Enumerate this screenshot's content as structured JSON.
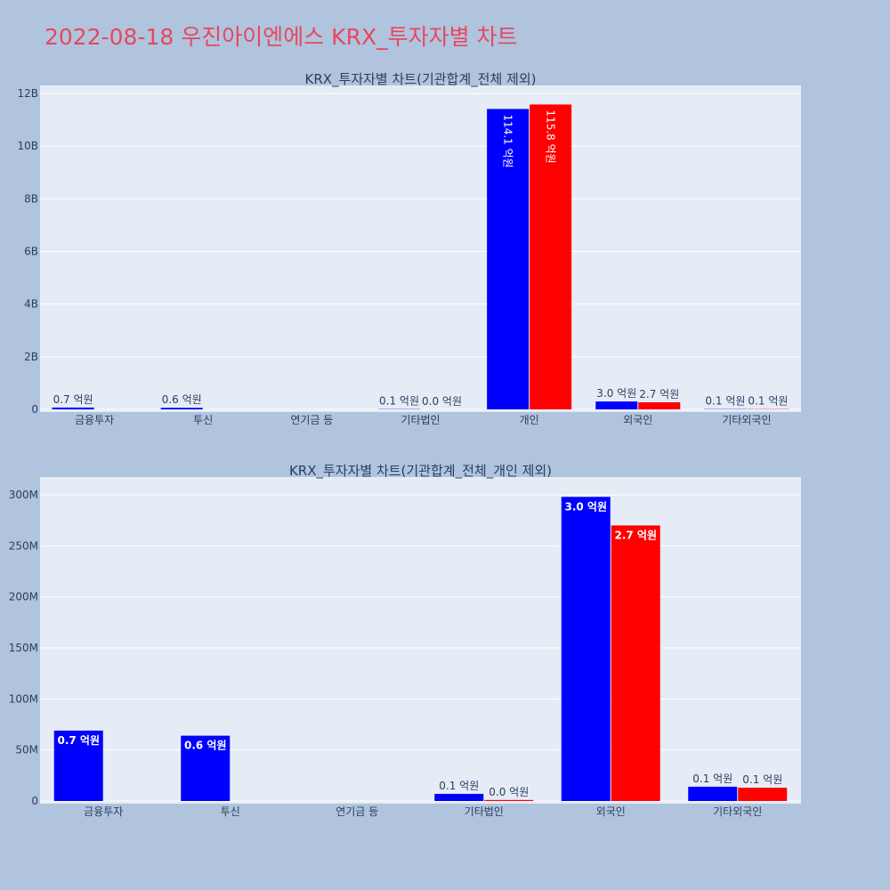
{
  "title": "2022-08-18 우진아이엔에스 KRX_투자자별 차트",
  "colors": {
    "background": "#b0c4de",
    "plot_bg": "#e5ecf6",
    "title": "#e8475f",
    "series_a": "#0000ff",
    "series_b": "#ff0000"
  },
  "chart_data": [
    {
      "type": "bar",
      "title": "KRX_투자자별 차트(기관합계_전체 제외)",
      "categories": [
        "금융투자",
        "투신",
        "연기금 등",
        "기타법인",
        "개인",
        "외국인",
        "기타외국인"
      ],
      "yticks": [
        "0",
        "2B",
        "4B",
        "6B",
        "8B",
        "10B",
        "12B"
      ],
      "ylim": [
        0,
        12000000000
      ],
      "grid": true,
      "series": [
        {
          "color": "#0000ff",
          "values": [
            70000000,
            60000000,
            0,
            10000000,
            11410000000,
            300000000,
            10000000
          ],
          "labels": [
            "0.7 억원",
            "0.6 억원",
            "",
            "0.1 억원",
            "114.1 억원",
            "3.0 억원",
            "0.1 억원"
          ]
        },
        {
          "color": "#ff0000",
          "values": [
            0,
            0,
            0,
            0,
            11580000000,
            270000000,
            10000000
          ],
          "labels": [
            "",
            "",
            "",
            "0.0 억원",
            "115.8 억원",
            "2.7 억원",
            "0.1 억원"
          ]
        }
      ]
    },
    {
      "type": "bar",
      "title": "KRX_투자자별 차트(기관합계_전체_개인 제외)",
      "categories": [
        "금융투자",
        "투신",
        "연기금 등",
        "기타법인",
        "외국인",
        "기타외국인"
      ],
      "yticks": [
        "0",
        "50M",
        "100M",
        "150M",
        "200M",
        "250M",
        "300M"
      ],
      "ylim": [
        0,
        300000000
      ],
      "grid": true,
      "series": [
        {
          "color": "#0000ff",
          "values": [
            69000000,
            64000000,
            0,
            7000000,
            298000000,
            14000000
          ],
          "labels": [
            "0.7 억원",
            "0.6 억원",
            "",
            "0.1 억원",
            "3.0 억원",
            "0.1 억원"
          ]
        },
        {
          "color": "#ff0000",
          "values": [
            0,
            0,
            0,
            1000000,
            270000000,
            13000000
          ],
          "labels": [
            "",
            "",
            "",
            "0.0 억원",
            "2.7 억원",
            "0.1 억원"
          ]
        }
      ]
    }
  ]
}
